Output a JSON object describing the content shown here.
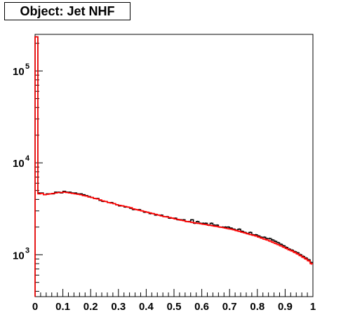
{
  "chart_data": {
    "type": "line",
    "title": "Object: Jet NHF",
    "xlabel": "",
    "ylabel": "",
    "xlim": [
      0,
      1
    ],
    "ylim": [
      350,
      250000
    ],
    "log_y": true,
    "grid": false,
    "x_ticks": [
      "0",
      "0.1",
      "0.2",
      "0.3",
      "0.4",
      "0.5",
      "0.6",
      "0.7",
      "0.8",
      "0.9",
      "1"
    ],
    "y_ticks": [
      {
        "base": "10",
        "exp": "3",
        "value": 1000
      },
      {
        "base": "10",
        "exp": "4",
        "value": 10000
      },
      {
        "base": "10",
        "exp": "5",
        "value": 100000
      }
    ],
    "bin_width": 0.01,
    "series": [
      {
        "color": "#000000",
        "values": [
          235000,
          4700,
          4700,
          4500,
          4600,
          4600,
          4600,
          4800,
          4800,
          4700,
          4900,
          4800,
          4800,
          4700,
          4700,
          4600,
          4600,
          4500,
          4400,
          4300,
          4200,
          4100,
          4100,
          3900,
          3800,
          3800,
          3700,
          3700,
          3600,
          3500,
          3400,
          3400,
          3300,
          3300,
          3200,
          3100,
          3100,
          3100,
          3000,
          2900,
          2900,
          2800,
          2800,
          2700,
          2700,
          2700,
          2600,
          2600,
          2500,
          2500,
          2500,
          2400,
          2400,
          2400,
          2300,
          2300,
          2400,
          2200,
          2300,
          2200,
          2200,
          2200,
          2100,
          2200,
          2100,
          2100,
          2000,
          2000,
          2000,
          2000,
          1950,
          1900,
          1850,
          1900,
          1800,
          1750,
          1700,
          1750,
          1650,
          1650,
          1600,
          1550,
          1550,
          1500,
          1500,
          1450,
          1400,
          1350,
          1300,
          1250,
          1200,
          1150,
          1120,
          1080,
          1050,
          1000,
          960,
          920,
          880,
          820
        ]
      },
      {
        "color": "#ff0000",
        "values": [
          235000,
          4600,
          4650,
          4500,
          4550,
          4600,
          4650,
          4700,
          4750,
          4750,
          4800,
          4750,
          4700,
          4650,
          4600,
          4550,
          4500,
          4400,
          4350,
          4250,
          4200,
          4100,
          4050,
          3950,
          3850,
          3800,
          3700,
          3650,
          3600,
          3500,
          3450,
          3400,
          3350,
          3300,
          3250,
          3150,
          3100,
          3050,
          3000,
          2950,
          2900,
          2850,
          2800,
          2750,
          2700,
          2650,
          2600,
          2580,
          2540,
          2500,
          2450,
          2420,
          2380,
          2350,
          2300,
          2280,
          2250,
          2220,
          2200,
          2180,
          2150,
          2130,
          2100,
          2080,
          2050,
          2030,
          2000,
          1980,
          1950,
          1920,
          1900,
          1870,
          1830,
          1800,
          1760,
          1730,
          1690,
          1660,
          1630,
          1600,
          1560,
          1520,
          1480,
          1450,
          1410,
          1370,
          1330,
          1290,
          1250,
          1210,
          1170,
          1130,
          1100,
          1060,
          1020,
          980,
          940,
          900,
          860,
          800
        ]
      }
    ]
  }
}
